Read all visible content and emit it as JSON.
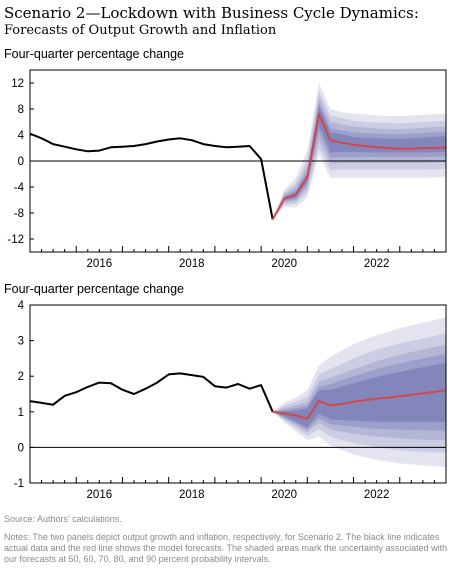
{
  "title": {
    "main": "Scenario 2—Lockdown with Business Cycle Dynamics:",
    "sub": "Forecasts of Output Growth and Inflation"
  },
  "source": "Source: Authors’ calculations.",
  "notes": "Notes: The two panels depict output growth and inflation, respectively, for Scenario 2. The black line indicates actual data and the red line shows the model forecasts. The shaded areas mark the uncertainty associated with our forecasts at 50, 60, 70, 80, and 90 percent probability intervals.",
  "colors": {
    "actual": "#000000",
    "forecast": "#d2474c",
    "bands": [
      "#e3e4ef",
      "#cbcde2",
      "#b4b6d6",
      "#9c9fc9",
      "#8386bb"
    ]
  },
  "chart_data": [
    {
      "type": "line",
      "ylabel": "Four-quarter percentage change",
      "xlim": [
        2015.0,
        2024.0
      ],
      "ylim": [
        -14,
        14
      ],
      "yticks": [
        -12,
        -8,
        -4,
        0,
        4,
        8,
        12
      ],
      "xticks": [
        2016,
        2018,
        2020,
        2022
      ],
      "grid": false,
      "zero_line": true,
      "series": [
        {
          "x": [
            2015.0,
            2015.25,
            2015.5,
            2015.75,
            2016.0,
            2016.25,
            2016.5,
            2016.75,
            2017.0,
            2017.25,
            2017.5,
            2017.75,
            2018.0,
            2018.25,
            2018.5,
            2018.75,
            2019.0,
            2019.25,
            2019.5,
            2019.75,
            2020.0,
            2020.25
          ],
          "values": [
            4.2,
            3.5,
            2.6,
            2.2,
            1.8,
            1.5,
            1.6,
            2.1,
            2.2,
            2.3,
            2.6,
            3.0,
            3.3,
            3.5,
            3.2,
            2.6,
            2.3,
            2.1,
            2.2,
            2.3,
            0.3,
            -9.0
          ]
        },
        {
          "x": [
            2020.25,
            2020.5,
            2020.75,
            2021.0,
            2021.25,
            2021.5,
            2021.75,
            2022.0,
            2022.25,
            2022.5,
            2022.75,
            2023.0,
            2023.25,
            2023.5,
            2023.75,
            2024.0
          ],
          "values": [
            -9.0,
            -5.8,
            -5.2,
            -2.5,
            7.2,
            3.2,
            2.8,
            2.5,
            2.3,
            2.1,
            2.0,
            1.9,
            1.9,
            2.0,
            2.0,
            2.1
          ]
        }
      ],
      "bands": {
        "x": [
          2020.25,
          2020.5,
          2020.75,
          2021.0,
          2021.25,
          2021.5,
          2021.75,
          2022.0,
          2022.5,
          2023.0,
          2023.5,
          2024.0
        ],
        "p90": [
          [
            -9.0,
            -9.0
          ],
          [
            -7.0,
            -4.4
          ],
          [
            -7.2,
            -2.6
          ],
          [
            -5.6,
            1.6
          ],
          [
            1.0,
            12.0
          ],
          [
            -2.6,
            8.0
          ],
          [
            -2.6,
            7.5
          ],
          [
            -2.6,
            7.3
          ],
          [
            -2.6,
            7.0
          ],
          [
            -2.6,
            6.9
          ],
          [
            -2.6,
            7.1
          ],
          [
            -2.5,
            7.3
          ]
        ],
        "p80": [
          [
            -9.0,
            -9.0
          ],
          [
            -6.7,
            -4.8
          ],
          [
            -6.6,
            -3.4
          ],
          [
            -4.9,
            0.3
          ],
          [
            2.0,
            10.8
          ],
          [
            -1.4,
            7.0
          ],
          [
            -1.3,
            6.6
          ],
          [
            -1.3,
            6.2
          ],
          [
            -1.3,
            5.9
          ],
          [
            -1.3,
            5.8
          ],
          [
            -1.3,
            6.0
          ],
          [
            -1.2,
            6.2
          ]
        ],
        "p70": [
          [
            -9.0,
            -9.0
          ],
          [
            -6.4,
            -5.1
          ],
          [
            -6.2,
            -4.0
          ],
          [
            -4.2,
            -0.7
          ],
          [
            3.2,
            9.9
          ],
          [
            -0.4,
            6.0
          ],
          [
            -0.3,
            5.6
          ],
          [
            -0.3,
            5.3
          ],
          [
            -0.3,
            5.0
          ],
          [
            -0.3,
            4.9
          ],
          [
            -0.3,
            5.1
          ],
          [
            -0.2,
            5.3
          ]
        ],
        "p60": [
          [
            -9.0,
            -9.0
          ],
          [
            -6.2,
            -5.4
          ],
          [
            -5.9,
            -4.5
          ],
          [
            -3.6,
            -1.5
          ],
          [
            4.5,
            9.0
          ],
          [
            0.5,
            5.0
          ],
          [
            0.6,
            4.7
          ],
          [
            0.6,
            4.4
          ],
          [
            0.6,
            4.2
          ],
          [
            0.6,
            4.1
          ],
          [
            0.6,
            4.3
          ],
          [
            0.7,
            4.5
          ]
        ],
        "p50": [
          [
            -9.0,
            -9.0
          ],
          [
            -6.0,
            -5.6
          ],
          [
            -5.6,
            -4.8
          ],
          [
            -3.1,
            -2.0
          ],
          [
            5.5,
            8.6
          ],
          [
            1.3,
            4.4
          ],
          [
            1.4,
            4.1
          ],
          [
            1.4,
            3.7
          ],
          [
            1.3,
            3.5
          ],
          [
            1.3,
            3.4
          ],
          [
            1.3,
            3.6
          ],
          [
            1.4,
            3.8
          ]
        ]
      }
    },
    {
      "type": "line",
      "ylabel": "Four-quarter percentage change",
      "xlim": [
        2015.0,
        2024.0
      ],
      "ylim": [
        -1,
        4
      ],
      "yticks": [
        -1,
        0,
        1,
        2,
        3,
        4
      ],
      "xticks": [
        2016,
        2018,
        2020,
        2022
      ],
      "grid": false,
      "zero_line": true,
      "series": [
        {
          "x": [
            2015.0,
            2015.25,
            2015.5,
            2015.75,
            2016.0,
            2016.25,
            2016.5,
            2016.75,
            2017.0,
            2017.25,
            2017.5,
            2017.75,
            2018.0,
            2018.25,
            2018.5,
            2018.75,
            2019.0,
            2019.25,
            2019.5,
            2019.75,
            2020.0,
            2020.25
          ],
          "values": [
            1.3,
            1.25,
            1.2,
            1.45,
            1.55,
            1.7,
            1.82,
            1.8,
            1.62,
            1.5,
            1.65,
            1.82,
            2.05,
            2.08,
            2.03,
            1.98,
            1.72,
            1.68,
            1.78,
            1.65,
            1.75,
            1.0
          ]
        },
        {
          "x": [
            2020.25,
            2020.5,
            2020.75,
            2021.0,
            2021.25,
            2021.5,
            2021.75,
            2022.0,
            2022.25,
            2022.5,
            2022.75,
            2023.0,
            2023.25,
            2023.5,
            2023.75,
            2024.0
          ],
          "values": [
            1.0,
            0.95,
            0.9,
            0.8,
            1.3,
            1.18,
            1.22,
            1.28,
            1.33,
            1.37,
            1.4,
            1.44,
            1.48,
            1.52,
            1.56,
            1.6
          ]
        }
      ],
      "bands": {
        "x": [
          2020.25,
          2020.5,
          2020.75,
          2021.0,
          2021.25,
          2021.5,
          2022.0,
          2022.5,
          2023.0,
          2023.5,
          2024.0
        ],
        "p90": [
          [
            1.0,
            1.0
          ],
          [
            0.7,
            1.25
          ],
          [
            0.45,
            1.4
          ],
          [
            0.2,
            1.6
          ],
          [
            0.3,
            2.3
          ],
          [
            0.05,
            2.55
          ],
          [
            -0.2,
            2.9
          ],
          [
            -0.35,
            3.15
          ],
          [
            -0.45,
            3.35
          ],
          [
            -0.5,
            3.5
          ],
          [
            -0.55,
            3.65
          ]
        ],
        "p80": [
          [
            1.0,
            1.0
          ],
          [
            0.76,
            1.17
          ],
          [
            0.55,
            1.28
          ],
          [
            0.32,
            1.42
          ],
          [
            0.52,
            2.05
          ],
          [
            0.3,
            2.2
          ],
          [
            0.12,
            2.5
          ],
          [
            0.0,
            2.75
          ],
          [
            -0.08,
            2.92
          ],
          [
            -0.12,
            3.06
          ],
          [
            -0.15,
            3.2
          ]
        ],
        "p70": [
          [
            1.0,
            1.0
          ],
          [
            0.8,
            1.1
          ],
          [
            0.62,
            1.18
          ],
          [
            0.42,
            1.28
          ],
          [
            0.7,
            1.85
          ],
          [
            0.5,
            1.95
          ],
          [
            0.38,
            2.2
          ],
          [
            0.3,
            2.42
          ],
          [
            0.25,
            2.6
          ],
          [
            0.22,
            2.75
          ],
          [
            0.2,
            2.88
          ]
        ],
        "p60": [
          [
            1.0,
            1.0
          ],
          [
            0.84,
            1.05
          ],
          [
            0.68,
            1.1
          ],
          [
            0.5,
            1.18
          ],
          [
            0.82,
            1.7
          ],
          [
            0.65,
            1.78
          ],
          [
            0.58,
            2.0
          ],
          [
            0.52,
            2.2
          ],
          [
            0.5,
            2.36
          ],
          [
            0.48,
            2.5
          ],
          [
            0.47,
            2.62
          ]
        ],
        "p50": [
          [
            1.0,
            1.0
          ],
          [
            0.87,
            1.01
          ],
          [
            0.72,
            1.04
          ],
          [
            0.56,
            1.1
          ],
          [
            0.95,
            1.6
          ],
          [
            0.78,
            1.62
          ],
          [
            0.75,
            1.8
          ],
          [
            0.72,
            1.98
          ],
          [
            0.72,
            2.12
          ],
          [
            0.72,
            2.25
          ],
          [
            0.72,
            2.38
          ]
        ]
      }
    }
  ]
}
